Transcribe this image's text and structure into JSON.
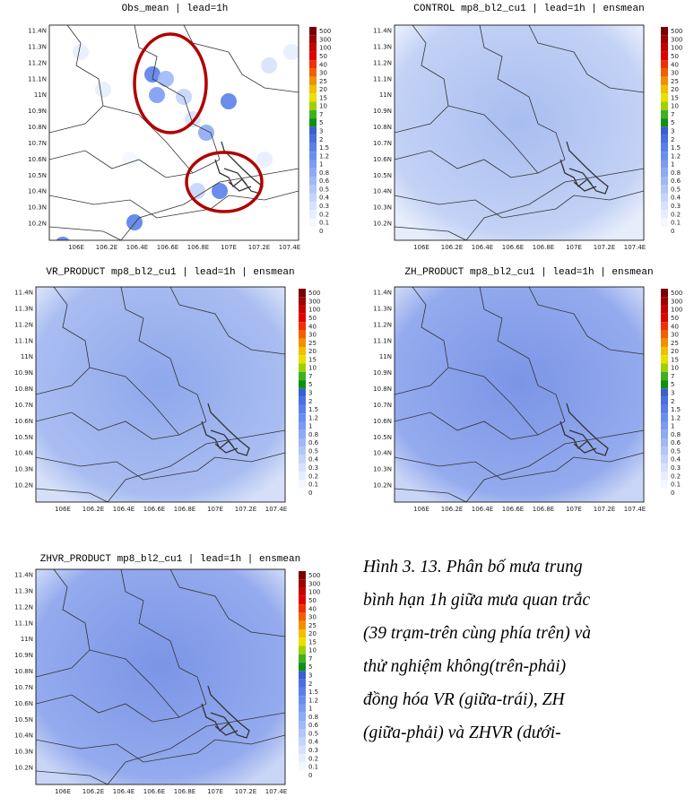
{
  "panels": [
    {
      "title": "Obs_mean  |  lead=1h"
    },
    {
      "title": "CONTROL mp8_bl2_cu1  |  lead=1h  |  ensmean"
    },
    {
      "title": "VR_PRODUCT mp8_bl2_cu1  |  lead=1h  |  ensmean"
    },
    {
      "title": "ZH_PRODUCT mp8_bl2_cu1  |  lead=1h  |  ensmean"
    },
    {
      "title": "ZHVR_PRODUCT mp8_bl2_cu1  |  lead=1h  |  ensmean"
    }
  ],
  "lat_labels": [
    "11.4N",
    "11.3N",
    "11.2N",
    "11.1N",
    "11N",
    "10.9N",
    "10.8N",
    "10.7N",
    "10.6N",
    "10.5N",
    "10.4N",
    "10.3N",
    "10.2N"
  ],
  "lon_labels": [
    "106E",
    "106.2E",
    "106.4E",
    "106.6E",
    "106.8E",
    "107E",
    "107.2E",
    "107.4E"
  ],
  "colorbar": {
    "labels": [
      "500",
      "300",
      "100",
      "50",
      "40",
      "30",
      "25",
      "20",
      "15",
      "10",
      "7",
      "5",
      "3",
      "2",
      "1.5",
      "1.2",
      "1",
      "0.8",
      "0.6",
      "0.5",
      "0.4",
      "0.3",
      "0.2",
      "0.1",
      "0"
    ],
    "colors": [
      "#7a0000",
      "#a00000",
      "#c80000",
      "#e00000",
      "#f03000",
      "#f06000",
      "#f09000",
      "#f0c000",
      "#e8e000",
      "#a0d000",
      "#40b020",
      "#109010",
      "#3a5fd0",
      "#4a70e0",
      "#5a80e8",
      "#6a8ef0",
      "#7b9cf2",
      "#8daaf4",
      "#a0b8f6",
      "#b2c6f8",
      "#c4d4fa",
      "#d6e2fc",
      "#e6eefd",
      "#f4f8ff",
      "#ffffff"
    ]
  },
  "caption": {
    "lines": [
      "Hình 3. 13. Phân bố mưa trung",
      "bình hạn 1h giữa mưa quan trắc",
      "(39 trạm-trên cùng phía trên) và",
      "thử nghiệm không(trên-phải)",
      "đồng hóa VR (giữa-trái), ZH",
      "(giữa-phải) và ZHVR (dưới-"
    ]
  }
}
